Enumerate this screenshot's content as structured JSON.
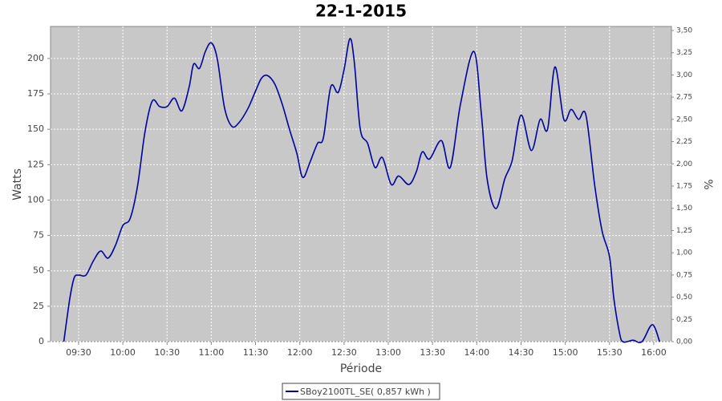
{
  "chart_data": {
    "type": "line",
    "title": "22-1-2015",
    "x_label": "Période",
    "y_label": "Watts",
    "y2_label": "%",
    "x": [
      "09:20",
      "09:24",
      "09:27",
      "09:30",
      "09:35",
      "09:40",
      "09:45",
      "09:50",
      "09:55",
      "10:00",
      "10:05",
      "10:10",
      "10:15",
      "10:20",
      "10:25",
      "10:30",
      "10:35",
      "10:40",
      "10:45",
      "10:48",
      "10:52",
      "10:56",
      "11:00",
      "11:04",
      "11:09",
      "11:14",
      "11:19",
      "11:25",
      "11:30",
      "11:34",
      "11:38",
      "11:43",
      "11:48",
      "11:53",
      "11:58",
      "12:02",
      "12:07",
      "12:12",
      "12:16",
      "12:21",
      "12:26",
      "12:30",
      "12:34",
      "12:37",
      "12:41",
      "12:46",
      "12:51",
      "12:56",
      "13:02",
      "13:07",
      "13:14",
      "13:19",
      "13:23",
      "13:28",
      "13:36",
      "13:42",
      "13:49",
      "13:58",
      "14:03",
      "14:07",
      "14:13",
      "14:19",
      "14:24",
      "14:30",
      "14:37",
      "14:43",
      "14:48",
      "14:53",
      "14:59",
      "15:04",
      "15:09",
      "15:14",
      "15:20",
      "15:25",
      "15:30",
      "15:33",
      "15:37",
      "15:39",
      "15:42",
      "15:46",
      "15:52",
      "15:59",
      "16:04"
    ],
    "series": [
      {
        "name": "SBoy2100TL_SE( 0,857 kWh )",
        "color": "#0000a0",
        "values": [
          0,
          30,
          45,
          47,
          47,
          57,
          64,
          59,
          68,
          82,
          87,
          110,
          148,
          170,
          166,
          166,
          172,
          163,
          180,
          196,
          193,
          205,
          211,
          200,
          165,
          152,
          155,
          165,
          177,
          186,
          188,
          182,
          168,
          150,
          133,
          116,
          127,
          140,
          144,
          180,
          176,
          192,
          214,
          197,
          150,
          140,
          123,
          130,
          111,
          117,
          111,
          120,
          134,
          129,
          142,
          123,
          168,
          205,
          162,
          115,
          94,
          115,
          128,
          160,
          135,
          157,
          150,
          194,
          157,
          164,
          157,
          160,
          110,
          78,
          60,
          30,
          5,
          0,
          0,
          1,
          0,
          12,
          0
        ]
      }
    ],
    "xlim": [
      "09:11",
      "16:12"
    ],
    "xticks": [
      "09:30",
      "10:00",
      "10:30",
      "11:00",
      "11:30",
      "12:00",
      "12:30",
      "13:00",
      "13:30",
      "14:00",
      "14:30",
      "15:00",
      "15:30",
      "16:00"
    ],
    "ylim": [
      0,
      222.6
    ],
    "yticks": [
      0,
      25,
      50,
      75,
      100,
      125,
      150,
      175,
      200
    ],
    "y2lim": [
      0,
      3.545
    ],
    "y2ticks": [
      {
        "value": 0,
        "label": "0,00"
      },
      {
        "value": 0.25,
        "label": "0,25"
      },
      {
        "value": 0.5,
        "label": "0,50"
      },
      {
        "value": 0.75,
        "label": "0,75"
      },
      {
        "value": 1,
        "label": "1,00"
      },
      {
        "value": 1.25,
        "label": "1,25"
      },
      {
        "value": 1.5,
        "label": "1,50"
      },
      {
        "value": 1.75,
        "label": "1,75"
      },
      {
        "value": 2,
        "label": "2,00"
      },
      {
        "value": 2.25,
        "label": "2,25"
      },
      {
        "value": 2.5,
        "label": "2,50"
      },
      {
        "value": 2.75,
        "label": "2,75"
      },
      {
        "value": 3,
        "label": "3,00"
      },
      {
        "value": 3.25,
        "label": "3,25"
      },
      {
        "value": 3.5,
        "label": "3,50"
      }
    ],
    "grid": true
  }
}
